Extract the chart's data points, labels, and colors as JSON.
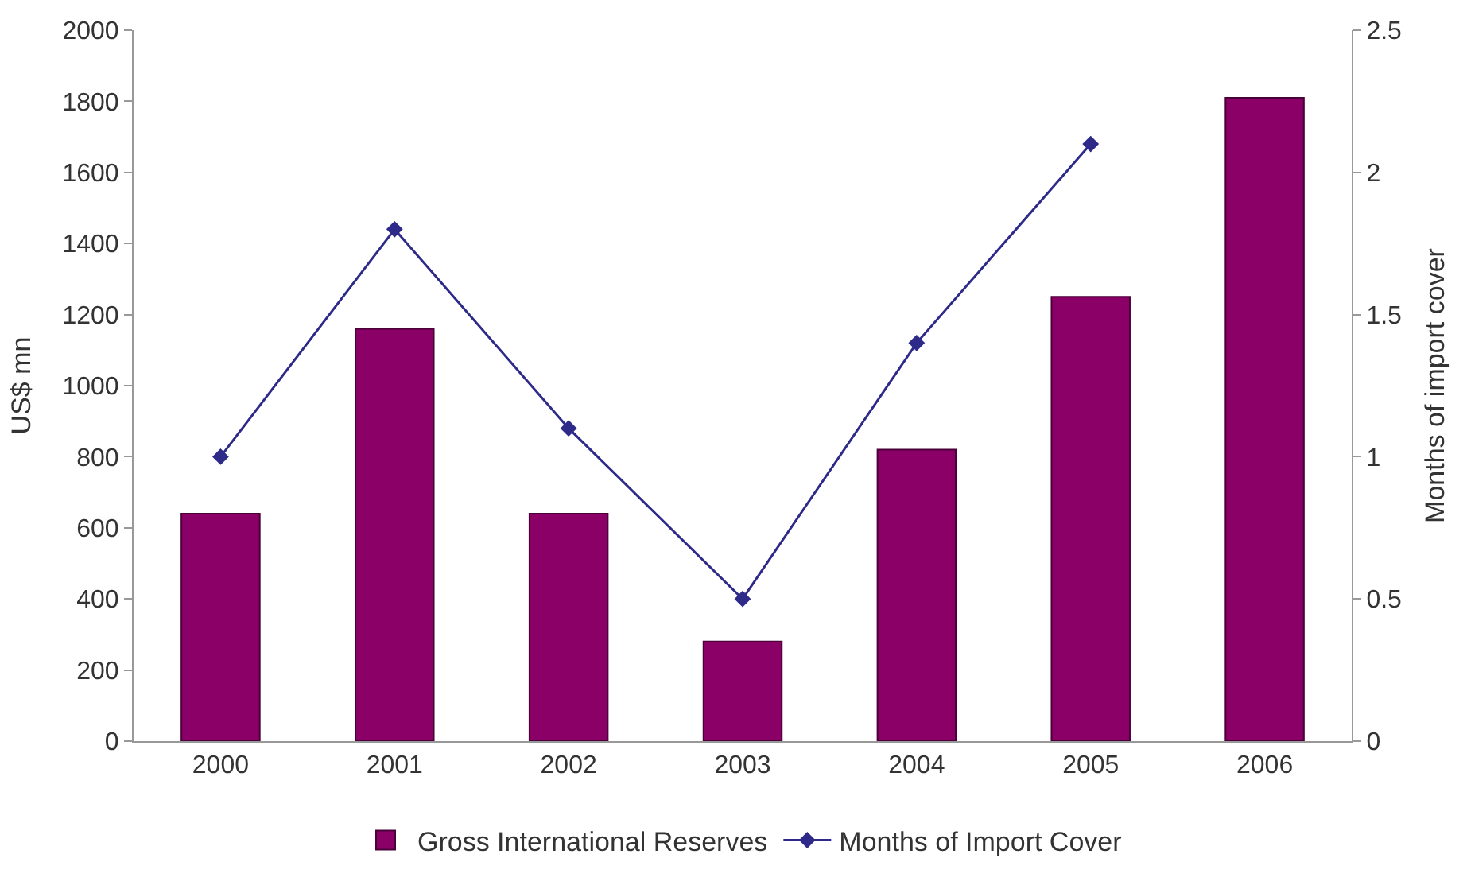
{
  "chart_data": {
    "type": "bar",
    "ylabel": "US$ mn",
    "y2label": "Months of import cover",
    "categories": [
      "2000",
      "2001",
      "2002",
      "2003",
      "2004",
      "2005",
      "2006"
    ],
    "series": [
      {
        "name": "Gross International Reserves",
        "color": "#8b0066",
        "values": [
          640,
          1160,
          640,
          280,
          820,
          1250,
          1810
        ]
      },
      {
        "name": "Months of Import Cover",
        "type": "line",
        "axis": "y2",
        "color": "#2e2a8a",
        "marker": "diamond",
        "values": [
          1.0,
          1.8,
          1.1,
          0.5,
          1.4,
          2.1,
          null
        ]
      }
    ],
    "ylim": [
      0,
      2000
    ],
    "yticks": [
      0,
      200,
      400,
      600,
      800,
      1000,
      1200,
      1400,
      1600,
      1800,
      2000
    ],
    "y2lim": [
      0,
      2.5
    ],
    "y2ticks": [
      0,
      0.5,
      1,
      1.5,
      2,
      2.5
    ],
    "legend": "bottom"
  }
}
